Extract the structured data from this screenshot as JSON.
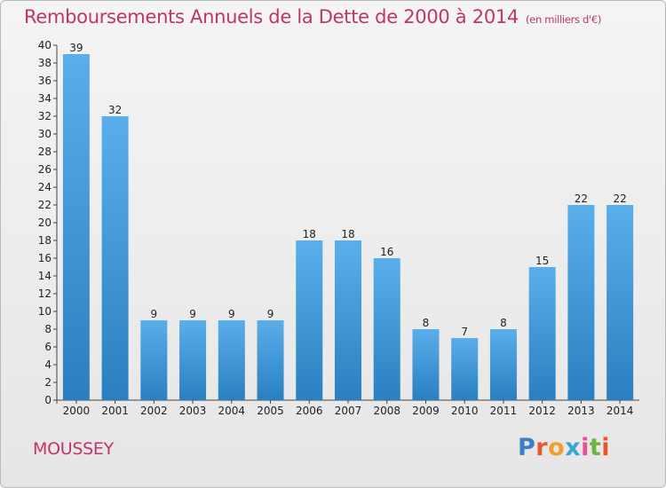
{
  "page": {
    "title": "Remboursements Annuels de la Dette de 2000 à 2014",
    "unit": "(en milliers d'€)",
    "city": "MOUSSEY",
    "logo": {
      "letters": [
        "P",
        "r",
        "o",
        "x",
        "i",
        "t",
        "i"
      ],
      "colors": [
        "#3b7fc4",
        "#e8562a",
        "#f0a02a",
        "#3aa6d8",
        "#e84f9a",
        "#6cb33f",
        "#e8562a"
      ]
    }
  },
  "colors": {
    "bar_top": "#5aaeeb",
    "bar_bottom": "#2a7fc0",
    "title": "#c0346b"
  },
  "chart_data": {
    "type": "bar",
    "title": "Remboursements Annuels de la Dette de 2000 à 2014",
    "subtitle": "(en milliers d'€)",
    "xlabel": "",
    "ylabel": "",
    "categories": [
      "2000",
      "2001",
      "2002",
      "2003",
      "2004",
      "2005",
      "2006",
      "2007",
      "2008",
      "2009",
      "2010",
      "2011",
      "2012",
      "2013",
      "2014"
    ],
    "values": [
      39,
      32,
      9,
      9,
      9,
      9,
      18,
      18,
      16,
      8,
      7,
      8,
      15,
      22,
      22
    ],
    "ylim": [
      0,
      40
    ],
    "yticks": [
      0,
      2,
      4,
      6,
      8,
      10,
      12,
      14,
      16,
      18,
      20,
      22,
      24,
      26,
      28,
      30,
      32,
      34,
      36,
      38,
      40
    ],
    "grid": false,
    "legend": "none"
  }
}
